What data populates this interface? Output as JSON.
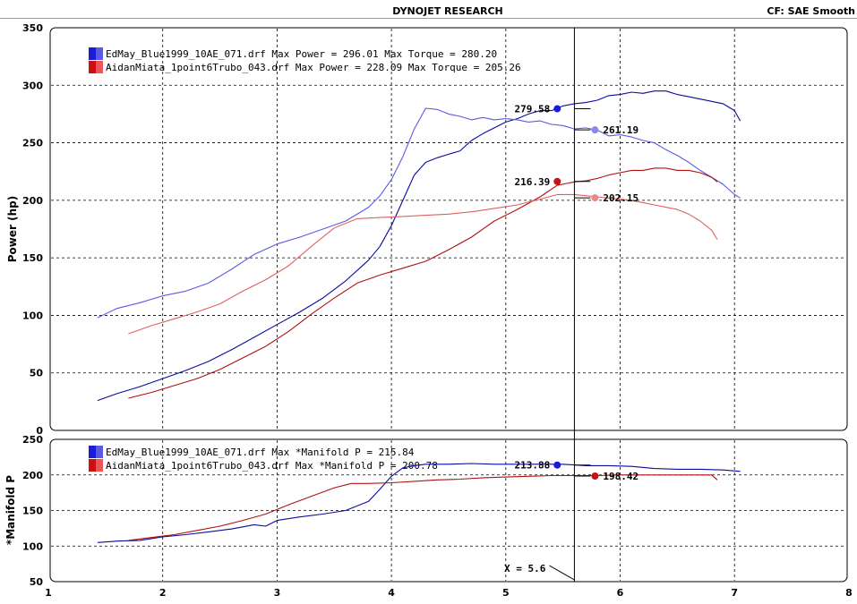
{
  "header": {
    "title": "DYNOJET RESEARCH",
    "cf_text": "CF: SAE  Smooth"
  },
  "chart_data": [
    {
      "type": "line",
      "ylabel": "Power (hp)",
      "ylim": [
        0,
        350
      ],
      "yticks": [
        0,
        50,
        100,
        150,
        200,
        250,
        300,
        350
      ],
      "xlim": [
        1,
        8
      ],
      "grid": true,
      "legend_placement": "top-left",
      "legend": [
        "EdMay_Blue1999_10AE_071.drf Max Power = 296.01 Max Torque = 280.20",
        "AidanMiata_1point6Trubo_043.drf Max Power = 228.09 Max Torque = 205.26"
      ],
      "series": [
        {
          "name": "EdMay_Blue1999_10AE_071.drf",
          "kind": "Power",
          "color": "#0a0aa0",
          "x": [
            1.43,
            1.6,
            1.8,
            2.0,
            2.2,
            2.4,
            2.6,
            2.8,
            3.0,
            3.2,
            3.4,
            3.6,
            3.8,
            3.9,
            4.0,
            4.1,
            4.2,
            4.3,
            4.4,
            4.5,
            4.6,
            4.7,
            4.8,
            4.9,
            5.0,
            5.1,
            5.2,
            5.3,
            5.4,
            5.5,
            5.6,
            5.7,
            5.8,
            5.9,
            6.0,
            6.1,
            6.2,
            6.3,
            6.4,
            6.5,
            6.6,
            6.7,
            6.8,
            6.9,
            7.0,
            7.05
          ],
          "y": [
            26,
            32,
            38,
            45,
            52,
            60,
            70,
            81,
            92,
            103,
            115,
            130,
            148,
            160,
            178,
            200,
            222,
            233,
            237,
            240,
            243,
            252,
            258,
            263,
            268,
            271,
            275,
            278,
            278,
            282,
            284,
            285,
            287,
            291,
            292,
            294,
            293,
            295,
            295,
            292,
            290,
            288,
            286,
            284,
            278,
            269
          ]
        },
        {
          "name": "EdMay_Blue1999_10AE_071.drf",
          "kind": "Torque",
          "color": "#5a5ae6",
          "x": [
            1.43,
            1.6,
            1.8,
            2.0,
            2.2,
            2.4,
            2.6,
            2.8,
            3.0,
            3.2,
            3.4,
            3.6,
            3.8,
            3.9,
            4.0,
            4.1,
            4.2,
            4.3,
            4.4,
            4.5,
            4.6,
            4.7,
            4.8,
            4.9,
            5.0,
            5.1,
            5.2,
            5.3,
            5.4,
            5.5,
            5.6,
            5.7,
            5.8,
            5.9,
            6.0,
            6.1,
            6.2,
            6.3,
            6.4,
            6.5,
            6.6,
            6.7,
            6.8,
            6.9,
            7.0,
            7.05
          ],
          "y": [
            98,
            106,
            111,
            117,
            121,
            128,
            140,
            153,
            162,
            168,
            175,
            182,
            194,
            204,
            218,
            238,
            262,
            280,
            279,
            275,
            273,
            270,
            272,
            270,
            271,
            270,
            268,
            269,
            266,
            265,
            262,
            263,
            261,
            256,
            257,
            255,
            252,
            250,
            244,
            239,
            233,
            226,
            220,
            214,
            205,
            202
          ]
        },
        {
          "name": "AidanMiata_1point6Trubo_043.drf",
          "kind": "Power",
          "color": "#b01010",
          "x": [
            1.7,
            1.9,
            2.1,
            2.3,
            2.5,
            2.7,
            2.9,
            3.1,
            3.3,
            3.5,
            3.7,
            3.9,
            4.1,
            4.3,
            4.5,
            4.7,
            4.9,
            5.1,
            5.3,
            5.45,
            5.6,
            5.7,
            5.8,
            5.9,
            6.0,
            6.1,
            6.2,
            6.3,
            6.4,
            6.5,
            6.6,
            6.7,
            6.8,
            6.85
          ],
          "y": [
            28,
            33,
            39,
            45,
            53,
            63,
            73,
            86,
            101,
            115,
            128,
            135,
            141,
            147,
            157,
            168,
            182,
            192,
            203,
            213,
            216,
            217,
            219,
            222,
            224,
            226,
            226,
            228,
            228,
            226,
            226,
            224,
            220,
            216
          ]
        },
        {
          "name": "AidanMiata_1point6Trubo_043.drf",
          "kind": "Torque",
          "color": "#e06060",
          "x": [
            1.7,
            1.9,
            2.1,
            2.3,
            2.5,
            2.7,
            2.9,
            3.1,
            3.3,
            3.5,
            3.7,
            3.9,
            4.1,
            4.3,
            4.5,
            4.7,
            4.9,
            5.1,
            5.3,
            5.45,
            5.6,
            5.7,
            5.8,
            5.9,
            6.0,
            6.1,
            6.2,
            6.3,
            6.4,
            6.5,
            6.6,
            6.7,
            6.8,
            6.85
          ],
          "y": [
            84,
            91,
            97,
            103,
            110,
            121,
            131,
            143,
            160,
            176,
            184,
            185,
            186,
            187,
            188,
            190,
            193,
            196,
            201,
            205,
            205,
            204,
            203,
            202,
            201,
            200,
            198,
            196,
            194,
            192,
            188,
            182,
            174,
            166
          ]
        }
      ],
      "markers": [
        {
          "label": "279.58",
          "value": 279.58,
          "x": 5.45,
          "color": "#1c1cd8",
          "text_side": "left"
        },
        {
          "label": "261.19",
          "value": 261.19,
          "x": 5.78,
          "color": "#8888ee",
          "text_side": "right"
        },
        {
          "label": "216.39",
          "value": 216.39,
          "x": 5.45,
          "color": "#cc1010",
          "text_side": "left"
        },
        {
          "label": "202.15",
          "value": 202.15,
          "x": 5.78,
          "color": "#ee8888",
          "text_side": "right"
        }
      ]
    },
    {
      "type": "line",
      "ylabel": "*Manifold P",
      "ylim": [
        50,
        250
      ],
      "yticks": [
        50,
        100,
        150,
        200,
        250
      ],
      "xlim": [
        1,
        8
      ],
      "xticks": [
        1,
        2,
        3,
        4,
        5,
        6,
        7,
        8
      ],
      "grid": true,
      "legend_placement": "top-left",
      "legend": [
        "EdMay_Blue1999_10AE_071.drf Max *Manifold P = 215.84",
        "AidanMiata_1point6Trubo_043.drf Max *Manifold P = 200.78"
      ],
      "cursor": {
        "x": 5.6,
        "label": "X = 5.6"
      },
      "series": [
        {
          "name": "EdMay_Blue1999_10AE_071.drf",
          "kind": "Manifold P",
          "color": "#0a0aa0",
          "x": [
            1.43,
            1.6,
            1.8,
            2.0,
            2.2,
            2.4,
            2.6,
            2.8,
            2.9,
            3.0,
            3.2,
            3.4,
            3.6,
            3.8,
            3.9,
            4.0,
            4.1,
            4.2,
            4.3,
            4.5,
            4.7,
            4.9,
            5.1,
            5.3,
            5.5,
            5.7,
            5.9,
            6.1,
            6.3,
            6.5,
            6.7,
            6.9,
            7.05
          ],
          "y": [
            105,
            107,
            108,
            113,
            116,
            120,
            124,
            130,
            128,
            136,
            141,
            145,
            150,
            163,
            180,
            198,
            210,
            213,
            215,
            215,
            216,
            215,
            215,
            215,
            215,
            213,
            213,
            212,
            209,
            208,
            208,
            207,
            205
          ]
        },
        {
          "name": "AidanMiata_1point6Trubo_043.drf",
          "kind": "Manifold P",
          "color": "#b01010",
          "x": [
            1.7,
            1.9,
            2.1,
            2.3,
            2.5,
            2.7,
            2.9,
            3.1,
            3.3,
            3.5,
            3.65,
            3.8,
            4.0,
            4.2,
            4.4,
            4.6,
            4.8,
            5.0,
            5.2,
            5.4,
            5.6,
            5.8,
            6.0,
            6.2,
            6.4,
            6.6,
            6.8,
            6.85
          ],
          "y": [
            108,
            112,
            116,
            122,
            128,
            136,
            145,
            158,
            170,
            182,
            188,
            188,
            189,
            191,
            193,
            194,
            196,
            197,
            198,
            199,
            199,
            199,
            200,
            200,
            200,
            200,
            200,
            193
          ]
        }
      ],
      "markers": [
        {
          "label": "213.88",
          "value": 213.88,
          "x": 5.45,
          "color": "#1c1cd8",
          "text_side": "left"
        },
        {
          "label": "198.42",
          "value": 198.42,
          "x": 5.78,
          "color": "#cc1010",
          "text_side": "right"
        }
      ]
    }
  ]
}
